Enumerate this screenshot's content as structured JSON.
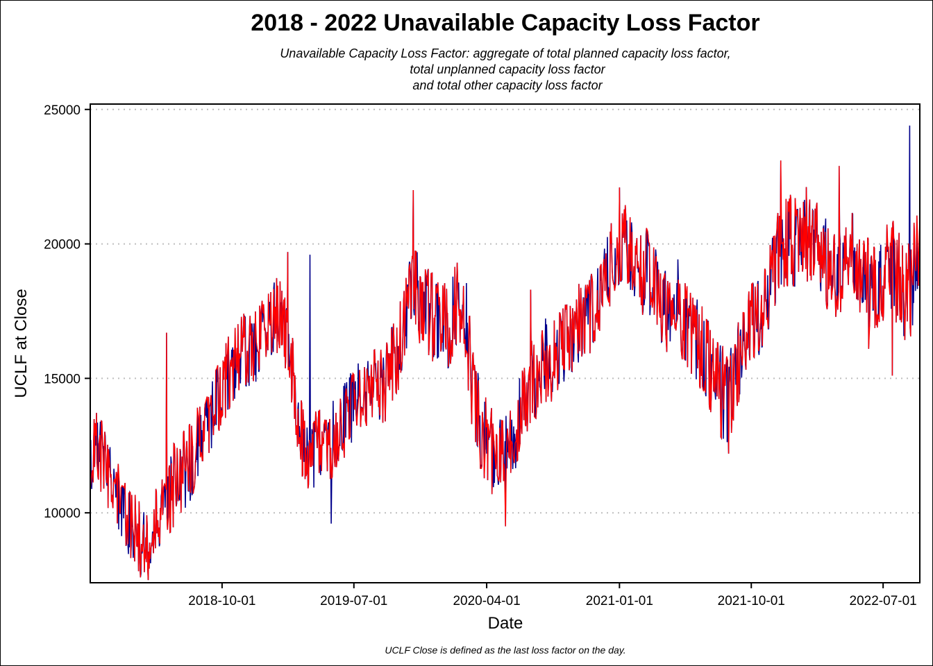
{
  "chart_data": {
    "type": "line",
    "title": "2018 - 2022 Unavailable Capacity Loss Factor",
    "subtitle": [
      "Unavailable Capacity Loss Factor: aggregate of total planned capacity loss factor,",
      "total unplanned capacity loss factor",
      "and total other capacity loss factor"
    ],
    "xlabel": "Date",
    "ylabel": "UCLF at Close",
    "caption": "UCLF Close is defined as the last loss factor on the day.",
    "x_range": [
      "2018-01-01",
      "2022-09-15"
    ],
    "ylim": [
      7400,
      25200
    ],
    "grid": "horizontal-dotted",
    "legend": "none",
    "colors": {
      "line": "#ff0000",
      "extremes": "#00008b",
      "grid": "#bebebe"
    },
    "y_ticks": [
      10000,
      15000,
      20000,
      25000
    ],
    "y_tick_labels": [
      "10000",
      "15000",
      "20000",
      "25000"
    ],
    "x_ticks": [
      "2018-10-01",
      "2019-07-01",
      "2020-04-01",
      "2021-01-01",
      "2021-10-01",
      "2022-07-01"
    ],
    "x_tick_labels": [
      "2018-10-01",
      "2019-07-01",
      "2020-04-01",
      "2021-01-01",
      "2021-10-01",
      "2022-07-01"
    ],
    "series": [
      {
        "x": [
          "2018-01-01",
          "2018-01-15",
          "2018-02-01",
          "2018-02-15",
          "2018-03-01",
          "2018-03-15",
          "2018-04-01",
          "2018-04-15",
          "2018-05-01",
          "2018-05-15",
          "2018-06-01",
          "2018-06-15",
          "2018-07-01",
          "2018-07-15",
          "2018-08-01",
          "2018-08-15",
          "2018-09-01",
          "2018-09-15",
          "2018-10-01",
          "2018-10-15",
          "2018-11-01",
          "2018-11-15",
          "2018-12-01",
          "2018-12-15",
          "2019-01-01",
          "2019-01-15",
          "2019-02-01",
          "2019-02-15",
          "2019-03-01",
          "2019-03-15",
          "2019-04-01",
          "2019-04-15",
          "2019-05-01",
          "2019-05-15",
          "2019-06-01",
          "2019-06-15",
          "2019-07-01",
          "2019-07-15",
          "2019-08-01",
          "2019-08-15",
          "2019-09-01",
          "2019-09-15",
          "2019-10-01",
          "2019-10-15",
          "2019-11-01",
          "2019-11-15",
          "2019-12-01",
          "2019-12-15",
          "2020-01-01",
          "2020-01-15",
          "2020-02-01",
          "2020-02-15",
          "2020-03-01",
          "2020-03-15",
          "2020-04-01",
          "2020-04-15",
          "2020-05-01",
          "2020-05-15",
          "2020-06-01",
          "2020-06-15",
          "2020-07-01",
          "2020-07-15",
          "2020-08-01",
          "2020-08-15",
          "2020-09-01",
          "2020-09-15",
          "2020-10-01",
          "2020-10-15",
          "2020-11-01",
          "2020-11-15",
          "2020-12-01",
          "2020-12-15",
          "2021-01-01",
          "2021-01-15",
          "2021-02-01",
          "2021-02-15",
          "2021-03-01",
          "2021-03-15",
          "2021-04-01",
          "2021-04-15",
          "2021-05-01",
          "2021-05-15",
          "2021-06-01",
          "2021-06-15",
          "2021-07-01",
          "2021-07-15",
          "2021-08-01",
          "2021-08-15",
          "2021-09-01",
          "2021-09-15",
          "2021-10-01",
          "2021-10-15",
          "2021-11-01",
          "2021-11-15",
          "2021-12-01",
          "2021-12-15",
          "2022-01-01",
          "2022-01-15",
          "2022-02-01",
          "2022-02-15",
          "2022-03-01",
          "2022-03-15",
          "2022-04-01",
          "2022-04-15",
          "2022-05-01",
          "2022-05-15",
          "2022-06-01",
          "2022-06-15",
          "2022-07-01",
          "2022-07-15",
          "2022-08-01",
          "2022-08-15",
          "2022-09-01",
          "2022-09-15"
        ],
        "y": [
          11500,
          12300,
          11700,
          10900,
          10500,
          9800,
          9300,
          9200,
          9000,
          9800,
          10300,
          10700,
          11200,
          11500,
          12000,
          12600,
          13200,
          13900,
          14400,
          15000,
          15500,
          16000,
          15700,
          16300,
          16800,
          17100,
          17400,
          16200,
          14500,
          12600,
          12000,
          12400,
          12800,
          12500,
          13300,
          13700,
          13900,
          14300,
          14600,
          14800,
          14500,
          15300,
          15800,
          17000,
          18200,
          17600,
          17300,
          16900,
          17200,
          16400,
          17800,
          17500,
          15000,
          13500,
          12600,
          12100,
          12200,
          12700,
          13100,
          13900,
          14700,
          15000,
          15600,
          15400,
          16000,
          16300,
          16700,
          16900,
          17300,
          17800,
          18500,
          18900,
          19600,
          19900,
          19300,
          18600,
          18900,
          18400,
          17600,
          17200,
          17800,
          16900,
          16600,
          16200,
          15700,
          15100,
          14500,
          14100,
          15200,
          16000,
          16600,
          17200,
          17800,
          18900,
          19600,
          19700,
          19900,
          20200,
          20100,
          19700,
          19200,
          19000,
          18700,
          19300,
          19500,
          18900,
          18500,
          18000,
          18600,
          19300,
          18600,
          17600,
          18300,
          20700
        ],
        "spread_lo": [
          1200,
          1000,
          1500,
          1200,
          1300,
          1400,
          1300,
          1500,
          1200,
          1300,
          1400,
          1500,
          1600,
          1500,
          1400,
          1500,
          1500,
          1400,
          1300,
          1400,
          1300,
          1400,
          1300,
          1200,
          1200,
          1300,
          1400,
          1300,
          1400,
          1300,
          1300,
          1400,
          1500,
          1600,
          1500,
          1600,
          1500,
          1400,
          1400,
          1300,
          1500,
          1400,
          1400,
          1300,
          1300,
          1500,
          1400,
          1400,
          1300,
          1400,
          1300,
          1600,
          1800,
          1800,
          1700,
          1500,
          1400,
          1500,
          1500,
          1400,
          1400,
          1500,
          1500,
          1500,
          1400,
          1300,
          1300,
          1400,
          1400,
          1300,
          1400,
          1200,
          1200,
          1300,
          1300,
          1400,
          1500,
          1400,
          1500,
          1400,
          1500,
          1600,
          1700,
          1600,
          1700,
          1800,
          1900,
          1700,
          1500,
          1400,
          1400,
          1400,
          1400,
          1500,
          1500,
          1400,
          1500,
          1600,
          1600,
          1600,
          1700,
          1500,
          1600,
          1500,
          1500,
          1600,
          1700,
          1500,
          1600,
          1600,
          1800,
          1800,
          1700,
          1800
        ],
        "spread_hi": [
          1500,
          1800,
          1500,
          1300,
          1300,
          1300,
          1400,
          1400,
          1500,
          1500,
          1600,
          1600,
          1700,
          1600,
          1600,
          1600,
          1600,
          1500,
          1600,
          1600,
          1600,
          1500,
          1600,
          1600,
          1600,
          1700,
          1600,
          1600,
          1500,
          1500,
          1400,
          1500,
          1500,
          1600,
          1700,
          1600,
          1700,
          1800,
          1700,
          1700,
          1600,
          1700,
          1800,
          1900,
          2200,
          2000,
          1900,
          1900,
          2000,
          1900,
          1900,
          1800,
          1700,
          1600,
          1600,
          1700,
          1800,
          1700,
          1700,
          1800,
          1800,
          1700,
          1700,
          1800,
          1700,
          1700,
          1700,
          1700,
          1800,
          1800,
          1800,
          1900,
          1900,
          1800,
          1700,
          1800,
          1800,
          1700,
          1700,
          1700,
          1800,
          1700,
          1700,
          1700,
          1700,
          1700,
          1800,
          1800,
          1800,
          1800,
          1900,
          1900,
          2000,
          2000,
          2100,
          2100,
          2000,
          2000,
          2000,
          1900,
          1800,
          1800,
          1800,
          1700,
          1800,
          1800,
          1800,
          1800,
          1800,
          1800,
          2100,
          2100,
          2200,
          2300
        ],
        "spikes": [
          {
            "x": "2018-06-08",
            "y": 16700
          },
          {
            "x": "2019-02-14",
            "y": 19700
          },
          {
            "x": "2019-04-01",
            "y": 19600
          },
          {
            "x": "2019-11-01",
            "y": 22000
          },
          {
            "x": "2020-07-01",
            "y": 18300
          },
          {
            "x": "2021-01-01",
            "y": 22100
          },
          {
            "x": "2021-12-01",
            "y": 23100
          },
          {
            "x": "2022-04-01",
            "y": 22900
          },
          {
            "x": "2022-08-25",
            "y": 24400
          }
        ],
        "dips": [
          {
            "x": "2018-04-15",
            "y": 7600
          },
          {
            "x": "2018-05-01",
            "y": 7500
          },
          {
            "x": "2019-05-15",
            "y": 9600
          },
          {
            "x": "2020-05-10",
            "y": 9500
          },
          {
            "x": "2020-04-01",
            "y": 12200
          },
          {
            "x": "2021-08-15",
            "y": 12200
          },
          {
            "x": "2022-06-01",
            "y": 16100
          },
          {
            "x": "2022-07-20",
            "y": 15100
          }
        ]
      }
    ]
  }
}
